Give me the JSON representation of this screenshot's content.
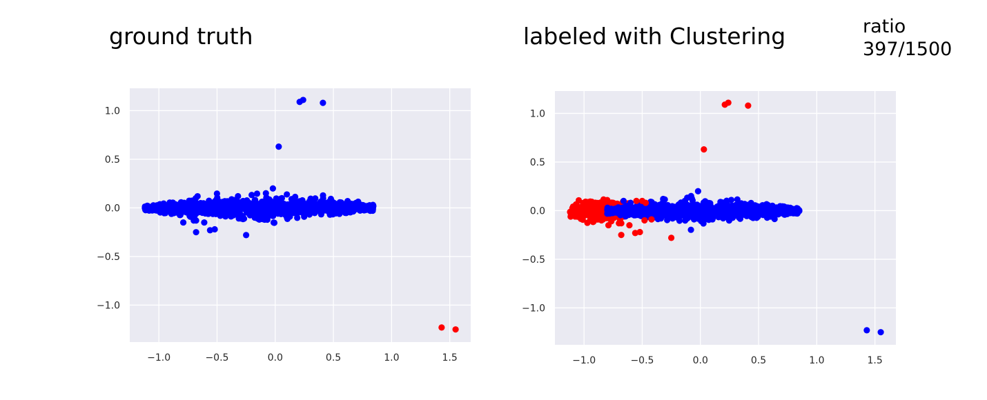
{
  "figure": {
    "ratio_label": "ratio",
    "ratio_value": "397/1500"
  },
  "colors": {
    "bg": "#EAEAF2",
    "grid": "#FFFFFF",
    "class_a": "#0000FF",
    "class_b": "#FF0000"
  },
  "chart_data": [
    {
      "type": "scatter",
      "title": "ground truth",
      "xlabel": "",
      "ylabel": "",
      "xlim": [
        -1.25,
        1.68
      ],
      "ylim": [
        -1.38,
        1.23
      ],
      "xticks": [
        -1.0,
        -0.5,
        0.0,
        0.5,
        1.0,
        1.5
      ],
      "xtick_labels": [
        "−1.0",
        "−0.5",
        "0.0",
        "0.5",
        "1.0",
        "1.5"
      ],
      "yticks": [
        1.0,
        0.5,
        0.0,
        -0.5,
        -1.0
      ],
      "ytick_labels": [
        "1.0",
        "0.5",
        "0.0",
        "−0.5",
        "−1.0"
      ],
      "grid": true,
      "legend": "none",
      "band": {
        "x_range": [
          -1.12,
          0.85
        ],
        "y_center": 0.0,
        "y_spread": 0.05,
        "color": "#0000FF",
        "count": 1103
      },
      "series": [
        {
          "color": "#0000FF",
          "points": [
            [
              0.21,
              1.09
            ],
            [
              0.24,
              1.11
            ],
            [
              0.41,
              1.08
            ],
            [
              0.03,
              0.63
            ],
            [
              -0.02,
              0.2
            ],
            [
              -0.25,
              -0.28
            ],
            [
              -0.68,
              -0.25
            ],
            [
              -0.56,
              -0.23
            ],
            [
              -0.52,
              -0.22
            ],
            [
              -0.79,
              -0.15
            ],
            [
              -0.61,
              -0.15
            ],
            [
              -0.68,
              -0.13
            ],
            [
              -0.7,
              -0.13
            ],
            [
              -0.08,
              0.15
            ],
            [
              -0.32,
              0.12
            ]
          ]
        },
        {
          "color": "#FF0000",
          "points": [
            [
              1.43,
              -1.23
            ],
            [
              1.55,
              -1.25
            ]
          ]
        }
      ]
    },
    {
      "type": "scatter",
      "title": "labeled with Clustering",
      "xlabel": "",
      "ylabel": "",
      "xlim": [
        -1.25,
        1.68
      ],
      "ylim": [
        -1.38,
        1.23
      ],
      "xticks": [
        -1.0,
        -0.5,
        0.0,
        0.5,
        1.0,
        1.5
      ],
      "xtick_labels": [
        "−1.0",
        "−0.5",
        "0.0",
        "0.5",
        "1.0",
        "1.5"
      ],
      "yticks": [
        1.0,
        0.5,
        0.0,
        -0.5,
        -1.0
      ],
      "ytick_labels": [
        "1.0",
        "0.5",
        "0.0",
        "−0.5",
        "−1.0"
      ],
      "grid": true,
      "legend": "none",
      "bands": [
        {
          "x_range": [
            -1.12,
            -0.6
          ],
          "y_center": 0.0,
          "y_spread": 0.05,
          "color": "#FF0000",
          "count": 380
        },
        {
          "x_range": [
            -0.8,
            0.85
          ],
          "y_center": 0.0,
          "y_spread": 0.045,
          "color": "#0000FF",
          "count": 1103
        }
      ],
      "series": [
        {
          "color": "#FF0000",
          "points": [
            [
              0.21,
              1.09
            ],
            [
              0.24,
              1.11
            ],
            [
              0.41,
              1.08
            ],
            [
              0.03,
              0.63
            ],
            [
              -0.25,
              -0.28
            ],
            [
              -0.68,
              -0.25
            ],
            [
              -0.56,
              -0.23
            ],
            [
              -0.52,
              -0.22
            ],
            [
              -0.79,
              -0.15
            ],
            [
              -0.61,
              -0.15
            ],
            [
              -0.68,
              -0.13
            ],
            [
              -0.7,
              -0.13
            ],
            [
              -0.48,
              -0.1
            ],
            [
              -0.42,
              -0.09
            ],
            [
              -0.55,
              0.1
            ],
            [
              -0.5,
              0.1
            ],
            [
              -0.47,
              0.08
            ],
            [
              -0.85,
              -0.1
            ],
            [
              -0.9,
              -0.08
            ],
            [
              -0.75,
              0.08
            ]
          ]
        },
        {
          "color": "#0000FF",
          "points": [
            [
              -0.02,
              0.2
            ],
            [
              -0.66,
              0.1
            ],
            [
              -0.6,
              0.08
            ],
            [
              -0.72,
              0.02
            ],
            [
              -0.78,
              -0.02
            ],
            [
              -0.08,
              0.15
            ],
            [
              -0.32,
              0.12
            ],
            [
              1.43,
              -1.23
            ],
            [
              1.55,
              -1.25
            ]
          ]
        }
      ]
    }
  ]
}
